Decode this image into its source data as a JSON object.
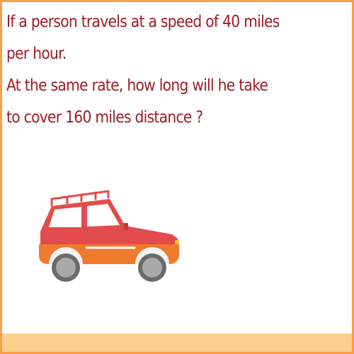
{
  "question": {
    "line1": "If a person travels at a speed of 40 miles",
    "line2": "per hour.",
    "line3": "At the same rate, how long will he take",
    "line4": "to cover 160 miles distance ?"
  },
  "colors": {
    "border": "#f5a04a",
    "text": "#9e1b24",
    "car_body": "#e24c4c",
    "car_lower": "#ef7a2e",
    "floor": "#fbd08d"
  }
}
